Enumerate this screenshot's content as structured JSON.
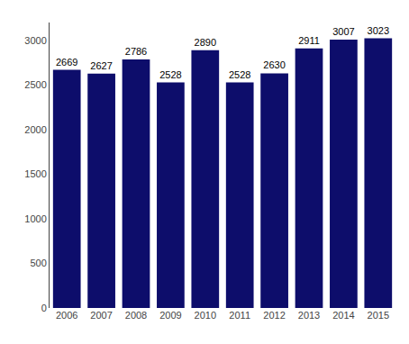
{
  "chart_data": {
    "type": "bar",
    "categories": [
      "2006",
      "2007",
      "2008",
      "2009",
      "2010",
      "2011",
      "2012",
      "2013",
      "2014",
      "2015"
    ],
    "values": [
      2669,
      2627,
      2786,
      2528,
      2890,
      2528,
      2630,
      2911,
      3007,
      3023
    ],
    "color": "#0d0d6b",
    "ylim": [
      0,
      3200
    ],
    "yticks": [
      0,
      500,
      1000,
      1500,
      2000,
      2500,
      3000
    ],
    "data_labels": true,
    "grid": false
  }
}
